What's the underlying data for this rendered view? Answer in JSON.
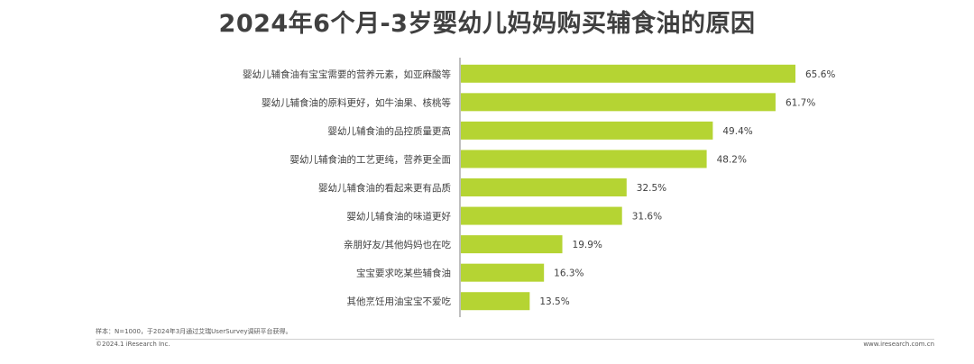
{
  "title": "2024年6个月-3岁婴幼儿妈妈购买辅食油的原因",
  "colors": {
    "bar": "#b5d433",
    "axis": "#7f7f7f",
    "text": "#404040",
    "title": "#404040"
  },
  "chart_data": {
    "type": "bar",
    "orientation": "horizontal",
    "title": "2024年6个月-3岁婴幼儿妈妈购买辅食油的原因",
    "xlabel": "",
    "ylabel": "",
    "unit": "%",
    "xlim": [
      0,
      70
    ],
    "grid": false,
    "legend": "none",
    "categories": [
      "婴幼儿辅食油有宝宝需要的营养元素，如亚麻酸等",
      "婴幼儿辅食油的原料更好，如牛油果、核桃等",
      "婴幼儿辅食油的品控质量更高",
      "婴幼儿辅食油的工艺更纯，营养更全面",
      "婴幼儿辅食油的看起来更有品质",
      "婴幼儿辅食油的味道更好",
      "亲朋好友/其他妈妈也在吃",
      "宝宝要求吃某些辅食油",
      "其他烹饪用油宝宝不爱吃"
    ],
    "values": [
      65.6,
      61.7,
      49.4,
      48.2,
      32.5,
      31.6,
      19.9,
      16.3,
      13.5
    ],
    "data_labels": [
      "65.6%",
      "61.7%",
      "49.4%",
      "48.2%",
      "32.5%",
      "31.6%",
      "19.9%",
      "16.3%",
      "13.5%"
    ]
  },
  "footer": {
    "note": "样本：N=1000，于2024年3月通过艾瑞UserSurvey调研平台获得。",
    "copyright": "©2024.1 iResearch Inc.",
    "website": "www.iresearch.com.cn"
  }
}
